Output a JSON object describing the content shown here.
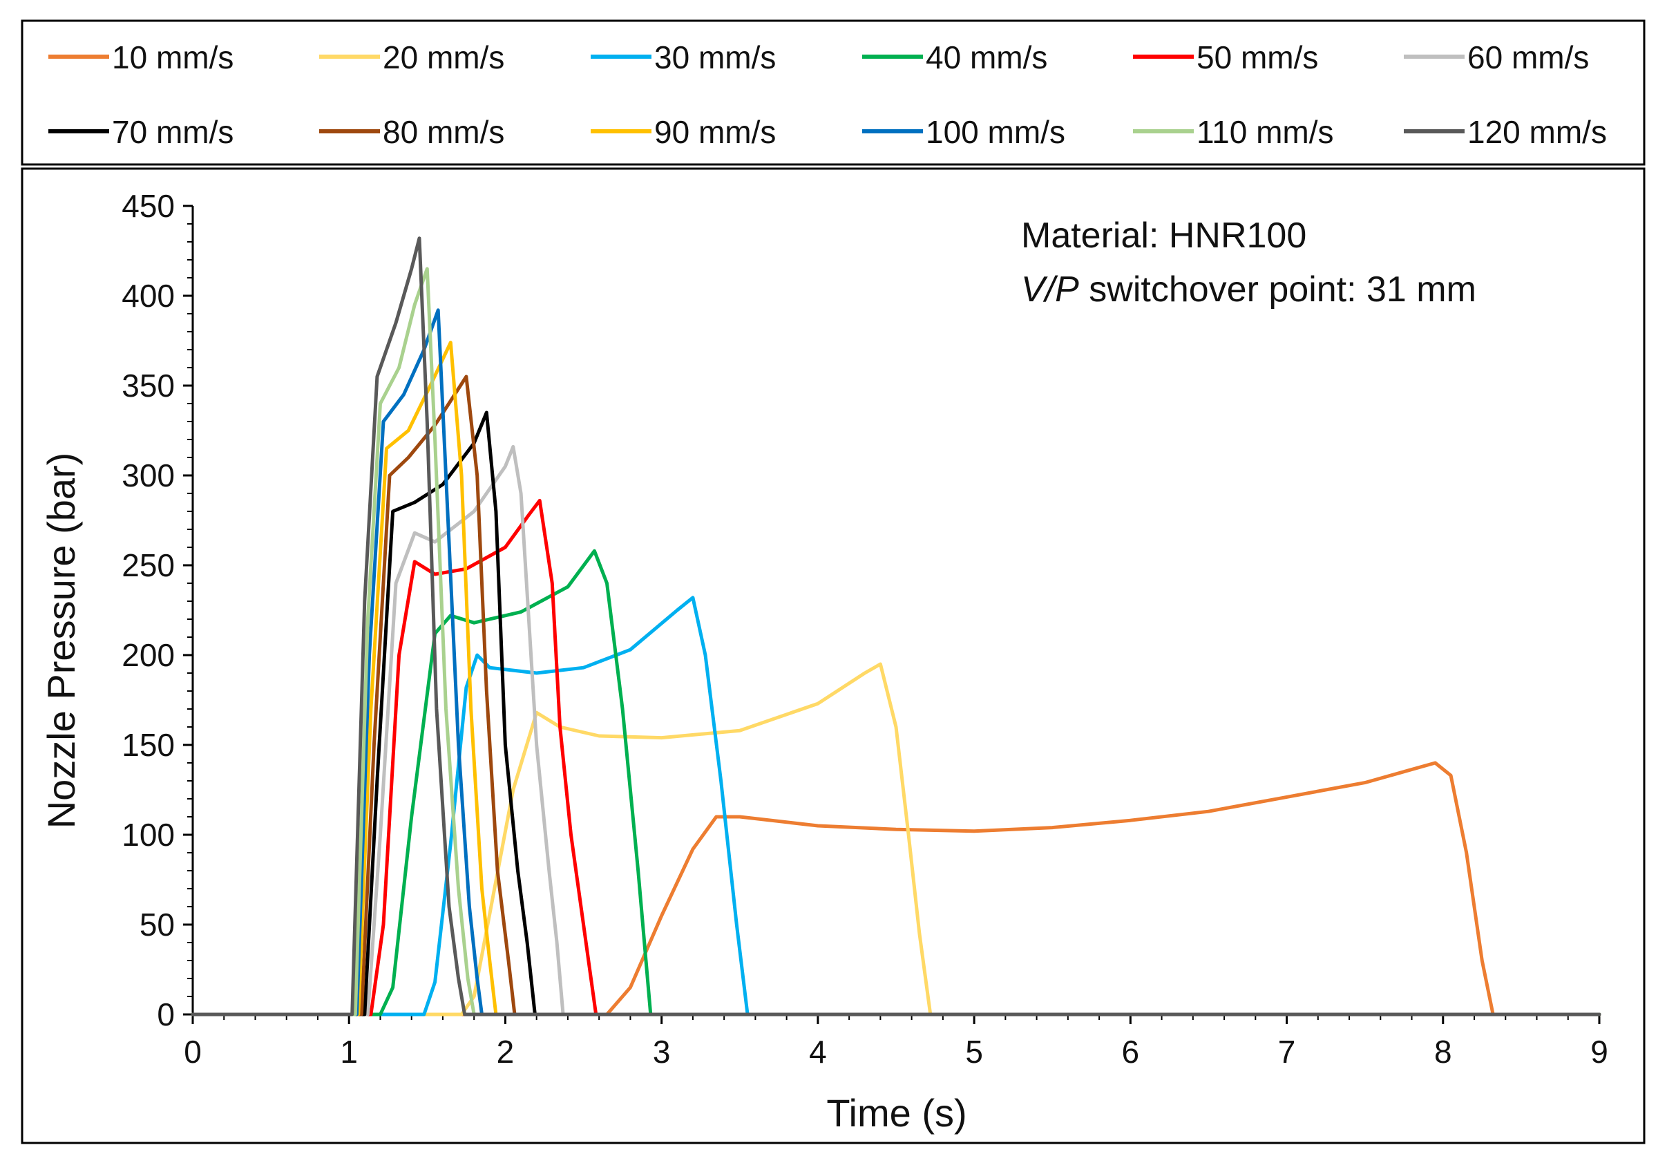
{
  "chart_data": {
    "type": "line",
    "xlabel": "Time (s)",
    "ylabel": "Nozzle Pressure (bar)",
    "xlim": [
      0,
      9
    ],
    "ylim": [
      0,
      450
    ],
    "xticks": [
      0,
      1,
      2,
      3,
      4,
      5,
      6,
      7,
      8,
      9
    ],
    "yticks": [
      0,
      50,
      100,
      150,
      200,
      250,
      300,
      350,
      400,
      450
    ],
    "annotations": {
      "material_label": "Material: HNR100",
      "switchover_italic": "V/P",
      "switchover_rest": " switchover point: 31 mm"
    },
    "legend_position": "top",
    "series": [
      {
        "name": "10 mm/s",
        "color": "#ED7D31",
        "points": [
          [
            0,
            0
          ],
          [
            2.65,
            0
          ],
          [
            2.8,
            15
          ],
          [
            3.0,
            55
          ],
          [
            3.2,
            92
          ],
          [
            3.35,
            110
          ],
          [
            3.5,
            110
          ],
          [
            4.0,
            105
          ],
          [
            4.5,
            103
          ],
          [
            5.0,
            102
          ],
          [
            5.5,
            104
          ],
          [
            6.0,
            108
          ],
          [
            6.5,
            113
          ],
          [
            7.0,
            121
          ],
          [
            7.5,
            129
          ],
          [
            7.95,
            140
          ],
          [
            8.05,
            133
          ],
          [
            8.15,
            90
          ],
          [
            8.25,
            30
          ],
          [
            8.32,
            0
          ],
          [
            9,
            0
          ]
        ]
      },
      {
        "name": "20 mm/s",
        "color": "#FFD966",
        "points": [
          [
            0,
            0
          ],
          [
            1.72,
            0
          ],
          [
            1.8,
            10
          ],
          [
            1.92,
            65
          ],
          [
            2.05,
            125
          ],
          [
            2.2,
            168
          ],
          [
            2.35,
            160
          ],
          [
            2.6,
            155
          ],
          [
            3.0,
            154
          ],
          [
            3.5,
            158
          ],
          [
            4.0,
            173
          ],
          [
            4.3,
            190
          ],
          [
            4.4,
            195
          ],
          [
            4.5,
            160
          ],
          [
            4.58,
            100
          ],
          [
            4.65,
            45
          ],
          [
            4.72,
            0
          ],
          [
            9,
            0
          ]
        ]
      },
      {
        "name": "30 mm/s",
        "color": "#00B0F0",
        "points": [
          [
            0,
            0
          ],
          [
            1.48,
            0
          ],
          [
            1.55,
            18
          ],
          [
            1.65,
            95
          ],
          [
            1.75,
            182
          ],
          [
            1.82,
            200
          ],
          [
            1.9,
            193
          ],
          [
            2.2,
            190
          ],
          [
            2.5,
            193
          ],
          [
            2.8,
            203
          ],
          [
            3.1,
            225
          ],
          [
            3.2,
            232
          ],
          [
            3.28,
            200
          ],
          [
            3.38,
            130
          ],
          [
            3.48,
            50
          ],
          [
            3.55,
            0
          ],
          [
            9,
            0
          ]
        ]
      },
      {
        "name": "40 mm/s",
        "color": "#00B050",
        "points": [
          [
            0,
            0
          ],
          [
            1.2,
            0
          ],
          [
            1.28,
            15
          ],
          [
            1.4,
            110
          ],
          [
            1.55,
            212
          ],
          [
            1.65,
            222
          ],
          [
            1.8,
            218
          ],
          [
            2.1,
            224
          ],
          [
            2.4,
            238
          ],
          [
            2.57,
            258
          ],
          [
            2.65,
            240
          ],
          [
            2.75,
            170
          ],
          [
            2.85,
            80
          ],
          [
            2.93,
            0
          ],
          [
            9,
            0
          ]
        ]
      },
      {
        "name": "50 mm/s",
        "color": "#FF0000",
        "points": [
          [
            0,
            0
          ],
          [
            1.14,
            0
          ],
          [
            1.22,
            50
          ],
          [
            1.32,
            200
          ],
          [
            1.42,
            252
          ],
          [
            1.55,
            245
          ],
          [
            1.75,
            248
          ],
          [
            2.0,
            260
          ],
          [
            2.15,
            278
          ],
          [
            2.22,
            286
          ],
          [
            2.3,
            240
          ],
          [
            2.35,
            160
          ],
          [
            2.42,
            100
          ],
          [
            2.5,
            50
          ],
          [
            2.58,
            0
          ],
          [
            9,
            0
          ]
        ]
      },
      {
        "name": "60 mm/s",
        "color": "#BFBFBF",
        "points": [
          [
            0,
            0
          ],
          [
            1.12,
            0
          ],
          [
            1.2,
            100
          ],
          [
            1.3,
            240
          ],
          [
            1.42,
            268
          ],
          [
            1.55,
            263
          ],
          [
            1.8,
            280
          ],
          [
            2.0,
            305
          ],
          [
            2.05,
            316
          ],
          [
            2.1,
            290
          ],
          [
            2.2,
            150
          ],
          [
            2.28,
            80
          ],
          [
            2.33,
            40
          ],
          [
            2.37,
            0
          ],
          [
            9,
            0
          ]
        ]
      },
      {
        "name": "70 mm/s",
        "color": "#000000",
        "points": [
          [
            0,
            0
          ],
          [
            1.1,
            0
          ],
          [
            1.18,
            130
          ],
          [
            1.28,
            280
          ],
          [
            1.42,
            285
          ],
          [
            1.6,
            295
          ],
          [
            1.8,
            318
          ],
          [
            1.88,
            335
          ],
          [
            1.94,
            280
          ],
          [
            2.0,
            150
          ],
          [
            2.08,
            80
          ],
          [
            2.14,
            40
          ],
          [
            2.19,
            0
          ],
          [
            9,
            0
          ]
        ]
      },
      {
        "name": "80 mm/s",
        "color": "#9E480E",
        "points": [
          [
            0,
            0
          ],
          [
            1.08,
            0
          ],
          [
            1.16,
            150
          ],
          [
            1.26,
            300
          ],
          [
            1.38,
            310
          ],
          [
            1.55,
            328
          ],
          [
            1.75,
            355
          ],
          [
            1.82,
            300
          ],
          [
            1.88,
            180
          ],
          [
            1.95,
            80
          ],
          [
            2.02,
            30
          ],
          [
            2.06,
            0
          ],
          [
            9,
            0
          ]
        ]
      },
      {
        "name": "90 mm/s",
        "color": "#FFC000",
        "points": [
          [
            0,
            0
          ],
          [
            1.06,
            0
          ],
          [
            1.14,
            170
          ],
          [
            1.24,
            315
          ],
          [
            1.38,
            325
          ],
          [
            1.52,
            350
          ],
          [
            1.65,
            374
          ],
          [
            1.72,
            300
          ],
          [
            1.78,
            170
          ],
          [
            1.85,
            70
          ],
          [
            1.9,
            30
          ],
          [
            1.94,
            0
          ],
          [
            9,
            0
          ]
        ]
      },
      {
        "name": "100 mm/s",
        "color": "#0070C0",
        "points": [
          [
            0,
            0
          ],
          [
            1.05,
            0
          ],
          [
            1.13,
            200
          ],
          [
            1.22,
            330
          ],
          [
            1.35,
            345
          ],
          [
            1.48,
            370
          ],
          [
            1.57,
            392
          ],
          [
            1.62,
            300
          ],
          [
            1.7,
            150
          ],
          [
            1.77,
            60
          ],
          [
            1.82,
            20
          ],
          [
            1.85,
            0
          ],
          [
            9,
            0
          ]
        ]
      },
      {
        "name": "110 mm/s",
        "color": "#A9D18E",
        "points": [
          [
            0,
            0
          ],
          [
            1.04,
            0
          ],
          [
            1.12,
            220
          ],
          [
            1.2,
            340
          ],
          [
            1.32,
            360
          ],
          [
            1.42,
            395
          ],
          [
            1.5,
            415
          ],
          [
            1.55,
            320
          ],
          [
            1.62,
            170
          ],
          [
            1.7,
            70
          ],
          [
            1.76,
            20
          ],
          [
            1.8,
            0
          ],
          [
            9,
            0
          ]
        ]
      },
      {
        "name": "120 mm/s",
        "color": "#595959",
        "points": [
          [
            0,
            0
          ],
          [
            1.02,
            0
          ],
          [
            1.1,
            230
          ],
          [
            1.18,
            355
          ],
          [
            1.3,
            385
          ],
          [
            1.4,
            415
          ],
          [
            1.45,
            432
          ],
          [
            1.5,
            330
          ],
          [
            1.56,
            170
          ],
          [
            1.64,
            60
          ],
          [
            1.7,
            20
          ],
          [
            1.74,
            0
          ],
          [
            9,
            0
          ]
        ]
      }
    ]
  }
}
